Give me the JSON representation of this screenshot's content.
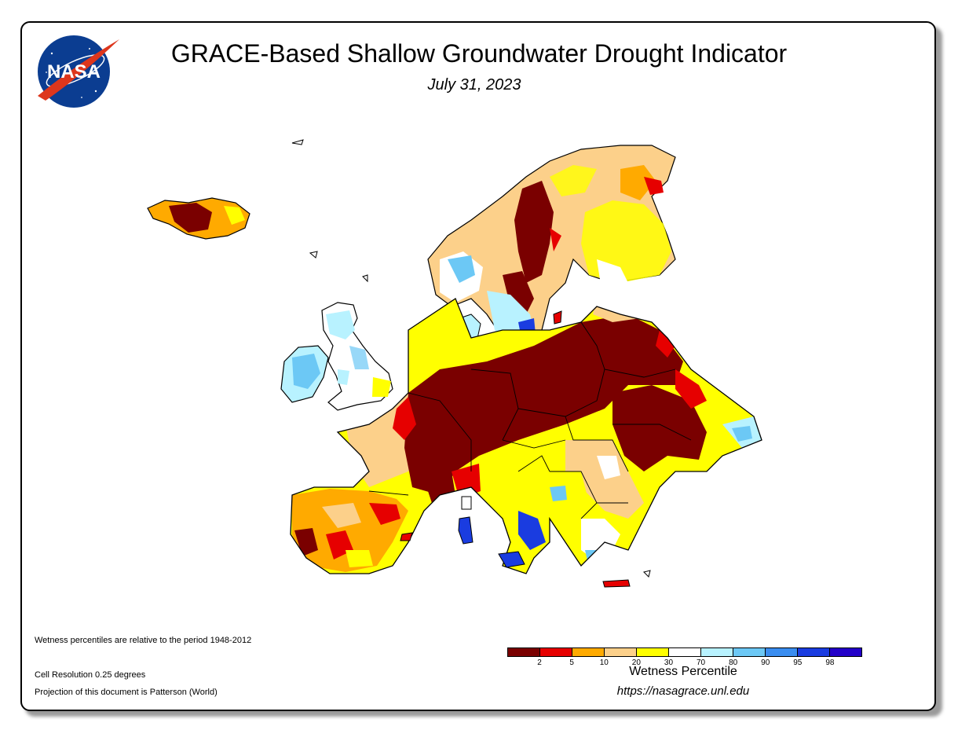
{
  "header": {
    "title": "GRACE-Based Shallow Groundwater Drought Indicator",
    "date": "July 31, 2023",
    "logo_text": "NASA"
  },
  "notes": {
    "baseline": "Wetness percentiles are relative to the period 1948-2012",
    "resolution": "Cell Resolution 0.25 degrees",
    "projection": "Projection of this document is Patterson (World)"
  },
  "legend": {
    "title": "Wetness Percentile",
    "ticks": [
      "2",
      "5",
      "10",
      "20",
      "30",
      "70",
      "80",
      "90",
      "95",
      "98"
    ],
    "colors": [
      "#7a0000",
      "#e60000",
      "#ffaa00",
      "#fcd08a",
      "#ffff00",
      "#ffffff",
      "#b8f2ff",
      "#6cc8f5",
      "#3a8df0",
      "#1a3ce0",
      "#2200c8"
    ]
  },
  "footer": {
    "url": "https://nasagrace.unl.edu"
  }
}
